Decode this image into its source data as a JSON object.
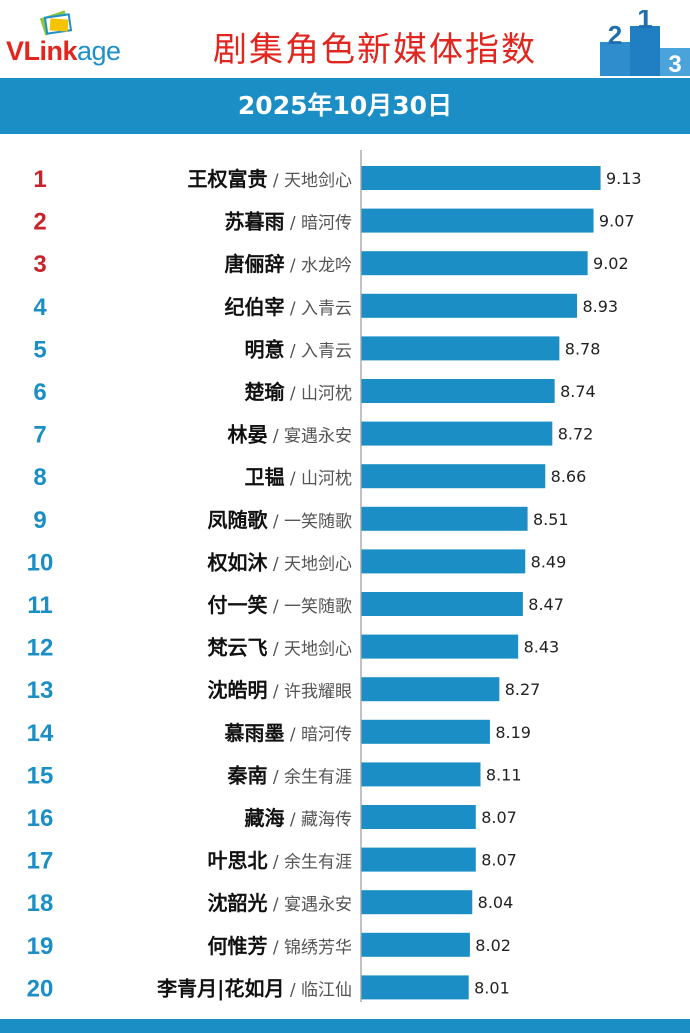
{
  "header": {
    "logo_text_red": "VLink",
    "logo_text_blue": "age",
    "title": "剧集角色新媒体指数",
    "podium_labels": [
      "2",
      "1",
      "3"
    ],
    "colors": {
      "accent_blue": "#1b8fc5",
      "title_red": "#e0261f",
      "rank_top3": "#c8232b",
      "rank_other": "#1b8fc5"
    }
  },
  "date": "2025年10月30日",
  "chart_data": {
    "type": "bar",
    "orientation": "horizontal",
    "title": "剧集角色新媒体指数",
    "subtitle": "2025年10月30日",
    "xlabel": "",
    "ylabel": "",
    "xlim": [
      7.1,
      9.3
    ],
    "legend": "none",
    "grid": false,
    "series": [
      {
        "values": [
          9.13,
          9.07,
          9.02,
          8.93,
          8.78,
          8.74,
          8.72,
          8.66,
          8.51,
          8.49,
          8.47,
          8.43,
          8.27,
          8.19,
          8.11,
          8.07,
          8.07,
          8.04,
          8.02,
          8.01
        ],
        "color": "#1b8fc5"
      }
    ],
    "categories": [
      {
        "rank": "1",
        "name": "王权富贵",
        "drama": "天地剑心"
      },
      {
        "rank": "2",
        "name": "苏暮雨",
        "drama": "暗河传"
      },
      {
        "rank": "3",
        "name": "唐俪辞",
        "drama": "水龙吟"
      },
      {
        "rank": "4",
        "name": "纪伯宰",
        "drama": "入青云"
      },
      {
        "rank": "5",
        "name": "明意",
        "drama": "入青云"
      },
      {
        "rank": "6",
        "name": "楚瑜",
        "drama": "山河枕"
      },
      {
        "rank": "7",
        "name": "林晏",
        "drama": "宴遇永安"
      },
      {
        "rank": "8",
        "name": "卫韫",
        "drama": "山河枕"
      },
      {
        "rank": "9",
        "name": "凤随歌",
        "drama": "一笑随歌"
      },
      {
        "rank": "10",
        "name": "权如沐",
        "drama": "天地剑心"
      },
      {
        "rank": "11",
        "name": "付一笑",
        "drama": "一笑随歌"
      },
      {
        "rank": "12",
        "name": "梵云飞",
        "drama": "天地剑心"
      },
      {
        "rank": "13",
        "name": "沈皓明",
        "drama": "许我耀眼"
      },
      {
        "rank": "14",
        "name": "慕雨墨",
        "drama": "暗河传"
      },
      {
        "rank": "15",
        "name": "秦南",
        "drama": "余生有涯"
      },
      {
        "rank": "16",
        "name": "藏海",
        "drama": "藏海传"
      },
      {
        "rank": "17",
        "name": "叶思北",
        "drama": "余生有涯"
      },
      {
        "rank": "18",
        "name": "沈韶光",
        "drama": "宴遇永安"
      },
      {
        "rank": "19",
        "name": "何惟芳",
        "drama": "锦绣芳华"
      },
      {
        "rank": "20",
        "name": "李青月|花如月",
        "drama": "临江仙"
      }
    ],
    "label_separator": " / "
  }
}
